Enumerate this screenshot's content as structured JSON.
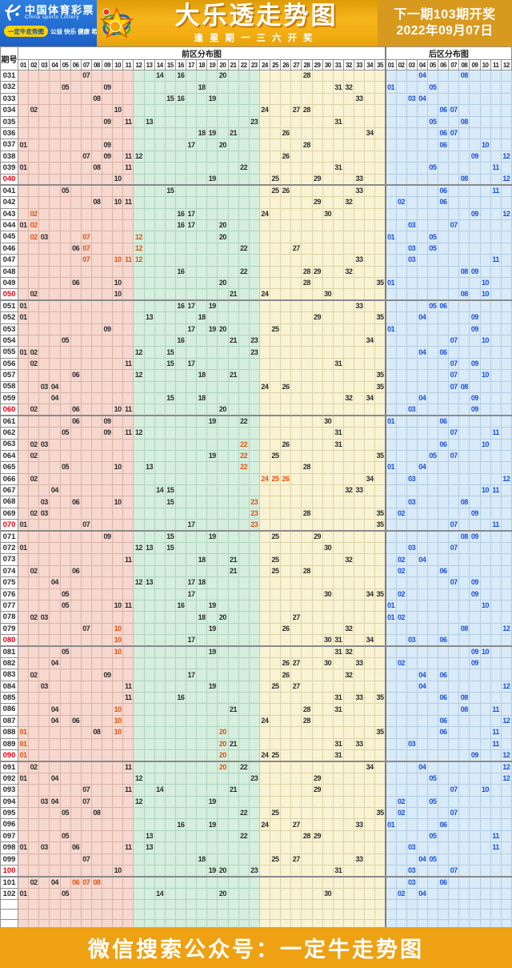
{
  "banner": {
    "brand_cn": "中国体育彩票",
    "brand_en": "China sports Lottery",
    "badge": "一定牛走势图",
    "slogan": "公益 快乐 健康 希望",
    "title": "大乐透走势图",
    "subtitle": "逢星期一三六开奖",
    "next1": "下一期103期开奖",
    "next2": "2022年09月07日"
  },
  "footer": {
    "text": "微信搜索公众号：一定牛走势图"
  },
  "colors": {
    "banner_blue": "#1c60c6",
    "banner_gold": "#f2ad12",
    "banner_right_gold": "#d8991f",
    "footer_orange": "#eda113",
    "front_zone1_bg": "#f6d8cf",
    "front_zone2_bg": "#d5eedd",
    "front_zone3_bg": "#faf3d3",
    "back_zone_bg": "#d9eaf8",
    "front_number": "#2b2b2b",
    "back_number": "#1a4fdd",
    "repeat_number": "#e25211",
    "period_highlight": "#e60012"
  },
  "chart_data": {
    "type": "table",
    "title": "大乐透走势图",
    "labels": {
      "period": "期号",
      "front": "前区分布图",
      "back": "后区分布图"
    },
    "front_column_count": 35,
    "back_column_count": 12,
    "empty_trailing_rows": 3,
    "legend_note": "f = front-zone numbers (01-35), b = back-zone numbers (01-12), r = numbers shown in red, pr = period number shown in red",
    "rows": [
      {
        "p": "031",
        "f": [
          "07",
          "14",
          "16",
          "20",
          "28"
        ],
        "r": [],
        "b": [
          "04",
          "08"
        ]
      },
      {
        "p": "032",
        "f": [
          "05",
          "09",
          "18",
          "31",
          "32"
        ],
        "r": [],
        "b": [
          "01",
          "05"
        ]
      },
      {
        "p": "033",
        "f": [
          "08",
          "15",
          "16",
          "19",
          "33"
        ],
        "r": [],
        "b": [
          "03",
          "04"
        ]
      },
      {
        "p": "034",
        "f": [
          "02",
          "10",
          "24",
          "27",
          "28"
        ],
        "r": [],
        "b": [
          "06",
          "07"
        ]
      },
      {
        "p": "035",
        "f": [
          "09",
          "11",
          "13",
          "23",
          "31"
        ],
        "r": [],
        "b": [
          "05",
          "08"
        ]
      },
      {
        "p": "036",
        "f": [
          "18",
          "19",
          "21",
          "26",
          "34"
        ],
        "r": [],
        "b": [
          "06",
          "07"
        ]
      },
      {
        "p": "037",
        "f": [
          "01",
          "09",
          "17",
          "20",
          "28"
        ],
        "r": [],
        "b": [
          "06",
          "10"
        ]
      },
      {
        "p": "038",
        "f": [
          "07",
          "09",
          "11",
          "12",
          "26"
        ],
        "r": [],
        "b": [
          "09",
          "12"
        ]
      },
      {
        "p": "039",
        "f": [
          "01",
          "08",
          "11",
          "22",
          "31"
        ],
        "r": [],
        "b": [
          "05",
          "11"
        ]
      },
      {
        "p": "040",
        "pr": true,
        "f": [
          "10",
          "19",
          "25",
          "29",
          "33"
        ],
        "r": [],
        "b": [
          "08",
          "12"
        ]
      },
      {
        "p": "041",
        "f": [
          "05",
          "15",
          "25",
          "26",
          "33"
        ],
        "r": [],
        "b": [
          "06",
          "11"
        ]
      },
      {
        "p": "042",
        "f": [
          "08",
          "10",
          "11",
          "29",
          "32"
        ],
        "r": [],
        "b": [
          "02",
          "06"
        ]
      },
      {
        "p": "043",
        "f": [
          "02",
          "16",
          "17",
          "24",
          "30"
        ],
        "r": [
          "02"
        ],
        "b": [
          "09",
          "12"
        ]
      },
      {
        "p": "044",
        "f": [
          "01",
          "02",
          "16",
          "17",
          "20"
        ],
        "r": [
          "02"
        ],
        "b": [
          "03",
          "07"
        ]
      },
      {
        "p": "045",
        "f": [
          "02",
          "03",
          "07",
          "12",
          "20"
        ],
        "r": [
          "02",
          "07",
          "12"
        ],
        "b": [
          "01",
          "05"
        ]
      },
      {
        "p": "046",
        "f": [
          "06",
          "07",
          "12",
          "22",
          "27"
        ],
        "r": [
          "07",
          "12"
        ],
        "b": [
          "03",
          "05"
        ]
      },
      {
        "p": "047",
        "f": [
          "07",
          "10",
          "11",
          "12",
          "33"
        ],
        "r": [
          "07",
          "10",
          "11",
          "12"
        ],
        "b": [
          "03",
          "11"
        ]
      },
      {
        "p": "048",
        "f": [
          "16",
          "22",
          "28",
          "29",
          "32"
        ],
        "r": [],
        "b": [
          "08",
          "09"
        ]
      },
      {
        "p": "049",
        "f": [
          "06",
          "10",
          "20",
          "28",
          "35"
        ],
        "r": [],
        "b": [
          "01",
          "10"
        ]
      },
      {
        "p": "050",
        "pr": true,
        "f": [
          "02",
          "10",
          "21",
          "24",
          "30"
        ],
        "r": [],
        "b": [
          "08",
          "10"
        ]
      },
      {
        "p": "051",
        "f": [
          "01",
          "16",
          "17",
          "19",
          "33"
        ],
        "r": [],
        "b": [
          "05",
          "06"
        ]
      },
      {
        "p": "052",
        "f": [
          "01",
          "13",
          "18",
          "29",
          "35"
        ],
        "r": [],
        "b": [
          "04",
          "09"
        ]
      },
      {
        "p": "053",
        "f": [
          "09",
          "17",
          "19",
          "20",
          "25"
        ],
        "r": [],
        "b": [
          "01",
          "09"
        ]
      },
      {
        "p": "054",
        "f": [
          "05",
          "16",
          "21",
          "23",
          "34"
        ],
        "r": [],
        "b": [
          "07",
          "10"
        ]
      },
      {
        "p": "055",
        "f": [
          "01",
          "02",
          "12",
          "15",
          "23"
        ],
        "r": [],
        "b": [
          "04",
          "06"
        ]
      },
      {
        "p": "056",
        "f": [
          "02",
          "11",
          "15",
          "17",
          "31"
        ],
        "r": [],
        "b": [
          "07",
          "09"
        ]
      },
      {
        "p": "057",
        "f": [
          "06",
          "12",
          "18",
          "21",
          "35"
        ],
        "r": [],
        "b": [
          "07",
          "10"
        ]
      },
      {
        "p": "058",
        "f": [
          "03",
          "04",
          "24",
          "26",
          "35"
        ],
        "r": [],
        "b": [
          "07",
          "08"
        ]
      },
      {
        "p": "059",
        "f": [
          "04",
          "15",
          "18",
          "32",
          "34"
        ],
        "r": [],
        "b": [
          "04",
          "09"
        ]
      },
      {
        "p": "060",
        "pr": true,
        "f": [
          "02",
          "06",
          "10",
          "11",
          "20"
        ],
        "r": [],
        "b": [
          "03",
          "09"
        ]
      },
      {
        "p": "061",
        "f": [
          "06",
          "09",
          "19",
          "22",
          "30"
        ],
        "r": [],
        "b": [
          "01",
          "06"
        ]
      },
      {
        "p": "062",
        "f": [
          "05",
          "09",
          "11",
          "12",
          "31"
        ],
        "r": [],
        "b": [
          "07",
          "11"
        ]
      },
      {
        "p": "063",
        "f": [
          "02",
          "03",
          "22",
          "26",
          "31"
        ],
        "r": [
          "22"
        ],
        "b": [
          "06",
          "10"
        ]
      },
      {
        "p": "064",
        "f": [
          "02",
          "19",
          "22",
          "25",
          "35"
        ],
        "r": [
          "22"
        ],
        "b": [
          "05",
          "07"
        ]
      },
      {
        "p": "065",
        "f": [
          "05",
          "10",
          "13",
          "22",
          "28"
        ],
        "r": [
          "22"
        ],
        "b": [
          "01",
          "04"
        ]
      },
      {
        "p": "066",
        "f": [
          "02",
          "24",
          "25",
          "26",
          "34"
        ],
        "r": [
          "24",
          "25",
          "26"
        ],
        "b": [
          "03",
          "12"
        ]
      },
      {
        "p": "067",
        "f": [
          "04",
          "14",
          "15",
          "32",
          "33"
        ],
        "r": [],
        "b": [
          "10",
          "11"
        ]
      },
      {
        "p": "068",
        "f": [
          "03",
          "06",
          "10",
          "15",
          "23"
        ],
        "r": [
          "23"
        ],
        "b": [
          "03",
          "08"
        ]
      },
      {
        "p": "069",
        "f": [
          "02",
          "03",
          "23",
          "28",
          "35"
        ],
        "r": [
          "23"
        ],
        "b": [
          "02",
          "09"
        ]
      },
      {
        "p": "070",
        "pr": true,
        "f": [
          "01",
          "07",
          "17",
          "23",
          "35"
        ],
        "r": [
          "23"
        ],
        "b": [
          "07",
          "11"
        ]
      },
      {
        "p": "071",
        "f": [
          "09",
          "15",
          "19",
          "25",
          "29"
        ],
        "r": [],
        "b": [
          "08",
          "09"
        ]
      },
      {
        "p": "072",
        "f": [
          "01",
          "12",
          "13",
          "15",
          "30"
        ],
        "r": [],
        "b": [
          "03",
          "07"
        ]
      },
      {
        "p": "073",
        "f": [
          "11",
          "18",
          "21",
          "25",
          "32"
        ],
        "r": [],
        "b": [
          "02",
          "04"
        ]
      },
      {
        "p": "074",
        "f": [
          "02",
          "06",
          "21",
          "25",
          "28"
        ],
        "r": [],
        "b": [
          "02",
          "06"
        ]
      },
      {
        "p": "075",
        "f": [
          "04",
          "12",
          "13",
          "17",
          "18"
        ],
        "r": [],
        "b": [
          "07",
          "09"
        ]
      },
      {
        "p": "076",
        "f": [
          "05",
          "17",
          "30",
          "34",
          "35"
        ],
        "r": [],
        "b": [
          "02",
          "09"
        ]
      },
      {
        "p": "077",
        "f": [
          "05",
          "10",
          "11",
          "16",
          "19"
        ],
        "r": [],
        "b": [
          "01",
          "10"
        ]
      },
      {
        "p": "078",
        "f": [
          "02",
          "03",
          "18",
          "20",
          "27"
        ],
        "r": [],
        "b": [
          "01",
          "02"
        ]
      },
      {
        "p": "079",
        "f": [
          "07",
          "10",
          "19",
          "26",
          "32"
        ],
        "r": [
          "10"
        ],
        "b": [
          "08",
          "12"
        ]
      },
      {
        "p": "080",
        "pr": true,
        "f": [
          "10",
          "17",
          "30",
          "31",
          "34"
        ],
        "r": [
          "10"
        ],
        "b": [
          "03",
          "06"
        ]
      },
      {
        "p": "081",
        "f": [
          "05",
          "10",
          "19",
          "31",
          "32"
        ],
        "r": [
          "10"
        ],
        "b": [
          "09",
          "10"
        ]
      },
      {
        "p": "082",
        "f": [
          "04",
          "26",
          "27",
          "30",
          "33"
        ],
        "r": [],
        "b": [
          "02",
          "09"
        ]
      },
      {
        "p": "083",
        "f": [
          "02",
          "09",
          "17",
          "26",
          "32"
        ],
        "r": [],
        "b": [
          "04",
          "06"
        ]
      },
      {
        "p": "084",
        "f": [
          "03",
          "11",
          "19",
          "25",
          "27"
        ],
        "r": [],
        "b": [
          "04",
          "12"
        ]
      },
      {
        "p": "085",
        "f": [
          "11",
          "16",
          "31",
          "33",
          "35"
        ],
        "r": [],
        "b": [
          "06",
          "08"
        ]
      },
      {
        "p": "086",
        "f": [
          "04",
          "10",
          "21",
          "28",
          "31"
        ],
        "r": [
          "10"
        ],
        "b": [
          "08",
          "11"
        ]
      },
      {
        "p": "087",
        "f": [
          "04",
          "06",
          "10",
          "24",
          "28"
        ],
        "r": [
          "10"
        ],
        "b": [
          "06",
          "12"
        ]
      },
      {
        "p": "088",
        "f": [
          "01",
          "08",
          "10",
          "20",
          "35"
        ],
        "r": [
          "01",
          "10",
          "20"
        ],
        "b": [
          "06",
          "11"
        ]
      },
      {
        "p": "089",
        "f": [
          "01",
          "20",
          "21",
          "31",
          "33"
        ],
        "r": [
          "01",
          "20"
        ],
        "b": [
          "03",
          "11"
        ]
      },
      {
        "p": "090",
        "pr": true,
        "f": [
          "01",
          "20",
          "24",
          "25",
          "31"
        ],
        "r": [
          "01",
          "20"
        ],
        "b": [
          "09",
          "12"
        ]
      },
      {
        "p": "091",
        "f": [
          "02",
          "11",
          "20",
          "22",
          "34"
        ],
        "r": [
          "20"
        ],
        "b": [
          "04",
          "12"
        ]
      },
      {
        "p": "092",
        "f": [
          "01",
          "04",
          "12",
          "23",
          "29"
        ],
        "r": [],
        "b": [
          "05",
          "12"
        ]
      },
      {
        "p": "093",
        "f": [
          "07",
          "11",
          "14",
          "21",
          "29"
        ],
        "r": [],
        "b": [
          "07",
          "10"
        ]
      },
      {
        "p": "094",
        "f": [
          "03",
          "04",
          "07",
          "12",
          "19"
        ],
        "r": [],
        "b": [
          "02",
          "05"
        ]
      },
      {
        "p": "095",
        "f": [
          "05",
          "08",
          "22",
          "25",
          "35"
        ],
        "r": [],
        "b": [
          "02",
          "07"
        ]
      },
      {
        "p": "096",
        "f": [
          "16",
          "19",
          "24",
          "27",
          "33"
        ],
        "r": [],
        "b": [
          "01",
          "06"
        ]
      },
      {
        "p": "097",
        "f": [
          "05",
          "13",
          "22",
          "28",
          "29"
        ],
        "r": [],
        "b": [
          "05",
          "11"
        ]
      },
      {
        "p": "098",
        "f": [
          "01",
          "03",
          "06",
          "11",
          "13"
        ],
        "r": [],
        "b": [
          "03",
          "11"
        ]
      },
      {
        "p": "099",
        "f": [
          "07",
          "18",
          "25",
          "27",
          "33"
        ],
        "r": [],
        "b": [
          "04",
          "05"
        ]
      },
      {
        "p": "100",
        "pr": true,
        "f": [
          "10",
          "19",
          "20",
          "23",
          "31"
        ],
        "r": [],
        "b": [
          "03",
          "07"
        ]
      },
      {
        "p": "101",
        "f": [
          "02",
          "04",
          "06",
          "07",
          "08"
        ],
        "r": [
          "06",
          "07",
          "08"
        ],
        "b": [
          "03",
          "06"
        ]
      },
      {
        "p": "102",
        "f": [
          "01",
          "05",
          "14",
          "20",
          "30"
        ],
        "r": [],
        "b": [
          "02",
          "04"
        ]
      }
    ]
  }
}
